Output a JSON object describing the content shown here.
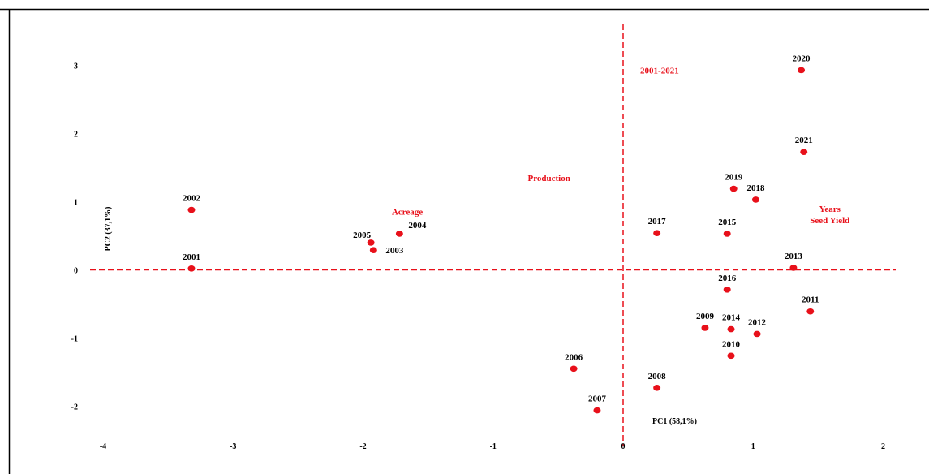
{
  "chart_data": {
    "type": "scatter",
    "title": "",
    "xlabel": "PC1 (58,1%)",
    "ylabel": "PC2 (37,1%)",
    "xlim": [
      -4.2,
      2.1
    ],
    "ylim": [
      -2.35,
      3.35
    ],
    "xticks": [
      -4,
      -3,
      -2,
      -1,
      0,
      1,
      2
    ],
    "yticks": [
      -2,
      -1,
      0,
      1,
      2,
      3
    ],
    "grid": false,
    "legend": "none",
    "reference_lines": {
      "x": 0,
      "y": 0,
      "style": "dashed"
    },
    "colors": {
      "points": "#e8101a",
      "reference_lines": "#e8101a",
      "annotations": "#e8101a",
      "labels": "#000000"
    },
    "points": [
      {
        "label": "2001",
        "x": -3.32,
        "y": 0.02
      },
      {
        "label": "2002",
        "x": -3.32,
        "y": 0.88
      },
      {
        "label": "2003",
        "x": -1.92,
        "y": 0.29
      },
      {
        "label": "2004",
        "x": -1.72,
        "y": 0.53
      },
      {
        "label": "2005",
        "x": -1.94,
        "y": 0.4
      },
      {
        "label": "2006",
        "x": -0.38,
        "y": -1.45
      },
      {
        "label": "2007",
        "x": -0.2,
        "y": -2.06
      },
      {
        "label": "2008",
        "x": 0.26,
        "y": -1.73
      },
      {
        "label": "2009",
        "x": 0.63,
        "y": -0.85
      },
      {
        "label": "2010",
        "x": 0.83,
        "y": -1.26
      },
      {
        "label": "2011",
        "x": 1.44,
        "y": -0.61
      },
      {
        "label": "2012",
        "x": 1.03,
        "y": -0.94
      },
      {
        "label": "2013",
        "x": 1.31,
        "y": 0.03
      },
      {
        "label": "2014",
        "x": 0.83,
        "y": -0.87
      },
      {
        "label": "2015",
        "x": 0.8,
        "y": 0.53
      },
      {
        "label": "2016",
        "x": 0.8,
        "y": -0.29
      },
      {
        "label": "2017",
        "x": 0.26,
        "y": 0.54
      },
      {
        "label": "2018",
        "x": 1.02,
        "y": 1.03
      },
      {
        "label": "2019",
        "x": 0.85,
        "y": 1.19
      },
      {
        "label": "2020",
        "x": 1.37,
        "y": 2.93
      },
      {
        "label": "2021",
        "x": 1.39,
        "y": 1.73
      }
    ],
    "annotations": [
      {
        "text": "2001-2021",
        "x": 0.28,
        "y": 2.93
      },
      {
        "text": "Production",
        "x": -0.57,
        "y": 1.35
      },
      {
        "text": "Acreage",
        "x": -1.66,
        "y": 0.86
      },
      {
        "text": "Years",
        "x": 1.59,
        "y": 0.9
      },
      {
        "text": "Seed Yield",
        "x": 1.59,
        "y": 0.73
      }
    ]
  }
}
